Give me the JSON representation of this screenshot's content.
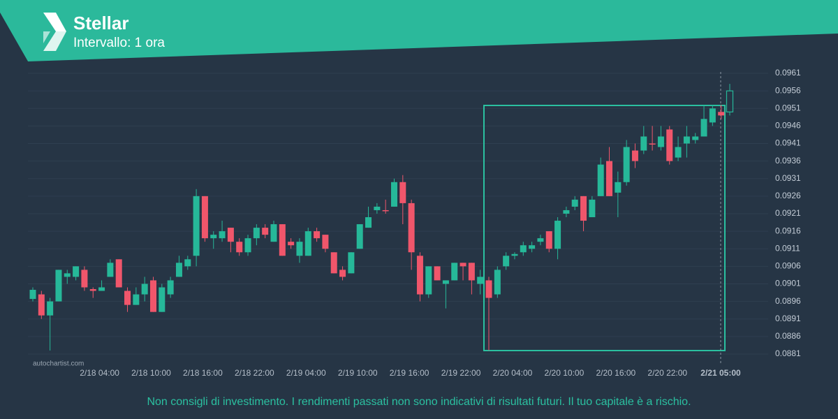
{
  "chart_data": {
    "type": "candlestick",
    "title": "Stellar",
    "subtitle": "Intervallo: 1 ora",
    "watermark": "autochartist.com",
    "disclaimer": "Non consigli di investimento. I rendimenti passati non sono indicativi di risultati futuri. Il tuo capitale è a rischio.",
    "categories": [
      null,
      null,
      null,
      null,
      null,
      null,
      null,
      null,
      "2/18 04:00",
      null,
      null,
      null,
      null,
      null,
      "2/18 10:00",
      null,
      null,
      null,
      null,
      null,
      "2/18 16:00",
      null,
      null,
      null,
      null,
      null,
      "2/18 22:00",
      null,
      null,
      null,
      null,
      null,
      "2/19 04:00",
      null,
      null,
      null,
      null,
      null,
      "2/19 10:00",
      null,
      null,
      null,
      null,
      null,
      "2/19 16:00",
      null,
      null,
      null,
      null,
      null,
      "2/19 22:00",
      null,
      null,
      null,
      null,
      null,
      "2/20 04:00",
      null,
      null,
      null,
      null,
      null,
      "2/20 10:00",
      null,
      null,
      null,
      null,
      null,
      "2/20 16:00",
      null,
      null,
      null,
      null,
      null,
      "2/20 22:00",
      null,
      null,
      null,
      null,
      null,
      null,
      "2/21 05:00"
    ],
    "open": [
      0.08967,
      0.0898,
      0.0892,
      0.0896,
      0.0903,
      0.0903,
      0.0905,
      0.08995,
      0.0899,
      0.0903,
      0.0908,
      0.0899,
      0.0895,
      0.0898,
      0.0902,
      0.0893,
      0.0898,
      0.0903,
      0.0906,
      0.0909,
      0.0926,
      0.0914,
      0.0914,
      0.0917,
      0.0913,
      0.091,
      0.0914,
      0.0917,
      0.0913,
      0.0918,
      0.0913,
      0.0909,
      0.0909,
      0.0916,
      0.0915,
      0.091,
      0.0905,
      0.0904,
      0.0911,
      0.0917,
      0.0922,
      0.0922,
      0.0923,
      0.093,
      0.0924,
      0.0909,
      0.0898,
      0.0906,
      0.0901,
      0.0902,
      0.0907,
      0.0907,
      0.0901,
      0.0902,
      0.0898,
      0.0906,
      0.0909,
      0.091,
      0.0911,
      0.0913,
      0.0916,
      0.0911,
      0.0921,
      0.0923,
      0.0926,
      0.092,
      0.0926,
      0.0936,
      0.0927,
      0.093,
      0.0939,
      0.0939,
      0.0941,
      0.094,
      0.0945,
      0.0937,
      0.0941,
      0.0942,
      0.0943,
      0.0947,
      0.095,
      0.095
    ],
    "high": [
      0.09,
      0.0899,
      0.0897,
      0.0905,
      0.0905,
      0.0906,
      0.0906,
      0.09,
      0.0902,
      0.0908,
      0.0908,
      0.09,
      0.09,
      0.0903,
      0.0903,
      0.0901,
      0.0903,
      0.0909,
      0.0909,
      0.0928,
      0.0926,
      0.0916,
      0.0919,
      0.0917,
      0.0914,
      0.0915,
      0.0918,
      0.0918,
      0.0919,
      0.0918,
      0.0914,
      0.0914,
      0.0917,
      0.0917,
      0.0915,
      0.091,
      0.0906,
      0.091,
      0.0918,
      0.0923,
      0.0924,
      0.0925,
      0.0931,
      0.0932,
      0.0925,
      0.091,
      0.0906,
      0.0906,
      0.0902,
      0.0907,
      0.0907,
      0.0907,
      0.0905,
      0.0903,
      0.0906,
      0.091,
      0.091,
      0.0913,
      0.0913,
      0.0915,
      0.0916,
      0.092,
      0.0923,
      0.0926,
      0.0926,
      0.0926,
      0.0937,
      0.094,
      0.0933,
      0.0942,
      0.0941,
      0.0946,
      0.0946,
      0.0946,
      0.0946,
      0.0943,
      0.0946,
      0.0944,
      0.0952,
      0.0952,
      0.0952,
      0.0958
    ],
    "low": [
      0.0896,
      0.0891,
      0.0882,
      0.0896,
      0.0901,
      0.0902,
      0.0899,
      0.0897,
      0.0899,
      0.0903,
      0.09,
      0.0893,
      0.0895,
      0.0896,
      0.0893,
      0.0893,
      0.0897,
      0.0903,
      0.0905,
      0.0906,
      0.0913,
      0.0911,
      0.0913,
      0.091,
      0.0909,
      0.0909,
      0.0912,
      0.0914,
      0.0913,
      0.0909,
      0.0911,
      0.0907,
      0.0909,
      0.0913,
      0.091,
      0.0904,
      0.0902,
      0.0904,
      0.0911,
      0.0917,
      0.0921,
      0.0921,
      0.0923,
      0.0918,
      0.0905,
      0.0896,
      0.0897,
      0.0902,
      0.0894,
      0.0902,
      0.0902,
      0.0898,
      0.0898,
      0.0882,
      0.0897,
      0.0905,
      0.0908,
      0.0909,
      0.091,
      0.0912,
      0.091,
      0.0908,
      0.092,
      0.0922,
      0.0916,
      0.092,
      0.0926,
      0.0926,
      0.092,
      0.0929,
      0.0934,
      0.0938,
      0.0939,
      0.0939,
      0.0935,
      0.0936,
      0.0937,
      0.0941,
      0.0943,
      0.0946,
      0.0948,
      0.0949
    ],
    "close": [
      0.08993,
      0.0892,
      0.0896,
      0.0905,
      0.0904,
      0.0906,
      0.09,
      0.0899,
      0.09,
      0.0907,
      0.09,
      0.0895,
      0.0898,
      0.0901,
      0.0893,
      0.09,
      0.0902,
      0.0907,
      0.0908,
      0.0926,
      0.0914,
      0.0915,
      0.0916,
      0.0913,
      0.091,
      0.0914,
      0.0917,
      0.0915,
      0.0918,
      0.0909,
      0.0912,
      0.0913,
      0.0916,
      0.0914,
      0.0911,
      0.0904,
      0.0903,
      0.091,
      0.0918,
      0.092,
      0.0923,
      0.09218,
      0.093,
      0.0924,
      0.091,
      0.0898,
      0.0906,
      0.0902,
      0.0902,
      0.0907,
      0.0906,
      0.0902,
      0.0903,
      0.0897,
      0.0905,
      0.0909,
      0.09095,
      0.0912,
      0.0912,
      0.0914,
      0.0911,
      0.0919,
      0.0922,
      0.0925,
      0.0919,
      0.0925,
      0.0935,
      0.0926,
      0.093,
      0.094,
      0.0936,
      0.0943,
      0.09408,
      0.0943,
      0.0936,
      0.094,
      0.0943,
      0.0943,
      0.0948,
      0.0951,
      0.0949,
      0.0956
    ],
    "up_color": "#26b899",
    "down_color": "#f0566b",
    "ylim": [
      0.0879,
      0.0962
    ],
    "yticks": [
      0.0881,
      0.0886,
      0.0891,
      0.0896,
      0.0901,
      0.0906,
      0.0911,
      0.0916,
      0.0921,
      0.0926,
      0.0931,
      0.0936,
      0.0941,
      0.0946,
      0.0951,
      0.0956,
      0.0961
    ],
    "grid": true
  }
}
